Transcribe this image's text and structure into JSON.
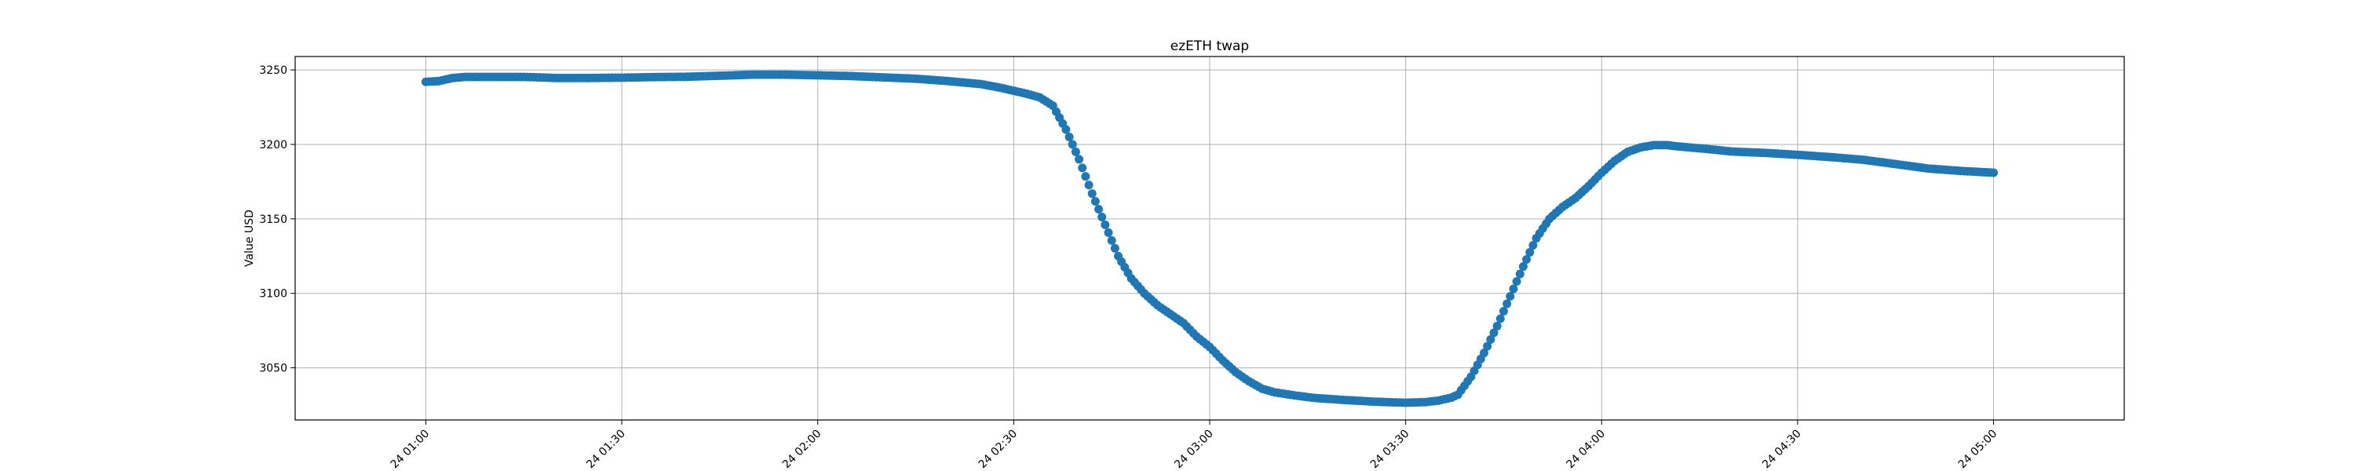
{
  "chart_data": {
    "type": "scatter",
    "title": "ezETH twap",
    "xlabel": "",
    "ylabel": "Value USD",
    "x_unit": "minutes after 24 01:00",
    "xlim": [
      -20,
      260
    ],
    "ylim": [
      3015,
      3259
    ],
    "grid": true,
    "x_ticks": [
      {
        "x": 0,
        "label": "24 01:00"
      },
      {
        "x": 30,
        "label": "24 01:30"
      },
      {
        "x": 60,
        "label": "24 02:00"
      },
      {
        "x": 90,
        "label": "24 02:30"
      },
      {
        "x": 120,
        "label": "24 03:00"
      },
      {
        "x": 150,
        "label": "24 03:30"
      },
      {
        "x": 180,
        "label": "24 04:00"
      },
      {
        "x": 210,
        "label": "24 04:30"
      },
      {
        "x": 240,
        "label": "24 05:00"
      }
    ],
    "y_ticks": [
      3050,
      3100,
      3150,
      3200,
      3250
    ],
    "series": [
      {
        "name": "",
        "color": "#1f77b4",
        "points": [
          [
            0,
            3242
          ],
          [
            2,
            3242.5
          ],
          [
            4,
            3244.5
          ],
          [
            6,
            3245.3
          ],
          [
            10,
            3245.3
          ],
          [
            15,
            3245.3
          ],
          [
            20,
            3244.6
          ],
          [
            25,
            3244.6
          ],
          [
            30,
            3244.8
          ],
          [
            35,
            3245.2
          ],
          [
            40,
            3245.4
          ],
          [
            45,
            3246.1
          ],
          [
            50,
            3246.8
          ],
          [
            55,
            3246.8
          ],
          [
            60,
            3246.4
          ],
          [
            65,
            3245.9
          ],
          [
            70,
            3245.0
          ],
          [
            75,
            3244.1
          ],
          [
            80,
            3242.5
          ],
          [
            85,
            3240.5
          ],
          [
            88,
            3238.0
          ],
          [
            92,
            3234.0
          ],
          [
            94,
            3231.5
          ],
          [
            96,
            3226.0
          ],
          [
            98,
            3210.0
          ],
          [
            100,
            3190.0
          ],
          [
            102,
            3167.0
          ],
          [
            104,
            3146.0
          ],
          [
            106,
            3125.0
          ],
          [
            108,
            3110.0
          ],
          [
            110,
            3100.0
          ],
          [
            112,
            3092.0
          ],
          [
            114,
            3086.0
          ],
          [
            116,
            3080.0
          ],
          [
            118,
            3071.0
          ],
          [
            120,
            3064.0
          ],
          [
            122,
            3055.0
          ],
          [
            124,
            3047.0
          ],
          [
            126,
            3041.0
          ],
          [
            128,
            3036.0
          ],
          [
            130,
            3033.5
          ],
          [
            133,
            3031.5
          ],
          [
            136,
            3029.8
          ],
          [
            140,
            3028.6
          ],
          [
            145,
            3027.3
          ],
          [
            150,
            3026.6
          ],
          [
            153,
            3027.0
          ],
          [
            155,
            3028.0
          ],
          [
            157,
            3030.0
          ],
          [
            158,
            3032.0
          ],
          [
            160,
            3044.0
          ],
          [
            162,
            3060.0
          ],
          [
            164,
            3078.0
          ],
          [
            166,
            3098.0
          ],
          [
            168,
            3118.0
          ],
          [
            170,
            3137.0
          ],
          [
            172,
            3150.0
          ],
          [
            174,
            3158.0
          ],
          [
            176,
            3164.0
          ],
          [
            178,
            3172.0
          ],
          [
            180,
            3181.0
          ],
          [
            182,
            3189.0
          ],
          [
            184,
            3195.0
          ],
          [
            186,
            3198.0
          ],
          [
            188,
            3199.5
          ],
          [
            190,
            3199.5
          ],
          [
            192,
            3198.5
          ],
          [
            196,
            3197.0
          ],
          [
            200,
            3195.2
          ],
          [
            205,
            3194.3
          ],
          [
            210,
            3193.0
          ],
          [
            215,
            3191.5
          ],
          [
            220,
            3189.7
          ],
          [
            225,
            3186.8
          ],
          [
            230,
            3183.8
          ],
          [
            235,
            3182.2
          ],
          [
            240,
            3181.0
          ]
        ]
      }
    ]
  }
}
